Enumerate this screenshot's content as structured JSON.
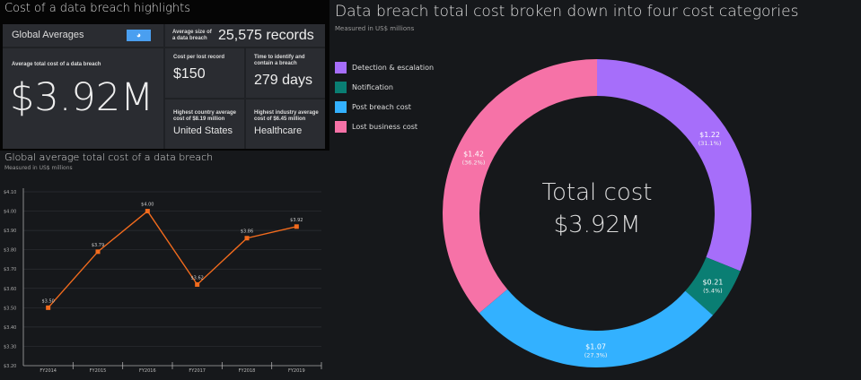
{
  "highlights": {
    "title": "Cost of a data breach highlights",
    "region": "Global Averages",
    "globe_icon": "globe-icon",
    "avg_size_label": "Average size of a data breach",
    "avg_size_value": "25,575 records",
    "avg_total_label": "Average total cost of a data breach",
    "avg_total_value": "$3.92M",
    "cost_per_record_label": "Cost per lost record",
    "cost_per_record_value": "$150",
    "time_label": "Time to identify and contain a breach",
    "time_value": "279 days",
    "country_label": "Highest country average cost of $8.19 million",
    "country_value": "United States",
    "industry_label": "Highest industry average cost of $6.45 million",
    "industry_value": "Healthcare"
  },
  "chart_data": [
    {
      "type": "line",
      "title": "Global average total cost of a data breach",
      "subtitle": "Measured in US$ millions",
      "categories": [
        "FY2014",
        "FY2015",
        "FY2016",
        "FY2017",
        "FY2018",
        "FY2019"
      ],
      "values": [
        3.5,
        3.79,
        4.0,
        3.62,
        3.86,
        3.92
      ],
      "data_labels": [
        "$3.50",
        "$3.79",
        "$4.00",
        "$3.62",
        "$3.86",
        "$3.92"
      ],
      "ylim": [
        3.2,
        4.1
      ],
      "yticks": [
        "$3.20",
        "$3.30",
        "$3.40",
        "$3.50",
        "$3.60",
        "$3.70",
        "$3.80",
        "$3.90",
        "$4.00",
        "$4.10"
      ],
      "grid": true,
      "color": "#f26b1d"
    },
    {
      "type": "pie",
      "title": "Data breach total cost broken down into four cost categories",
      "subtitle": "Measured in US$ millions",
      "center_label": "Total cost",
      "center_value": "$3.92M",
      "legend": "top-left",
      "slices": [
        {
          "name": "Detection & escalation",
          "value": 1.22,
          "percent": 31.1,
          "label": "$1.22",
          "pct_label": "(31.1%)",
          "color": "#a66efa"
        },
        {
          "name": "Notification",
          "value": 0.21,
          "percent": 5.4,
          "label": "$0.21",
          "pct_label": "(5.4%)",
          "color": "#0a7e73"
        },
        {
          "name": "Post breach cost",
          "value": 1.07,
          "percent": 27.3,
          "label": "$1.07",
          "pct_label": "(27.3%)",
          "color": "#33b1ff"
        },
        {
          "name": "Lost business cost",
          "value": 1.42,
          "percent": 36.2,
          "label": "$1.42",
          "pct_label": "(36.2%)",
          "color": "#f672a7"
        }
      ]
    }
  ]
}
